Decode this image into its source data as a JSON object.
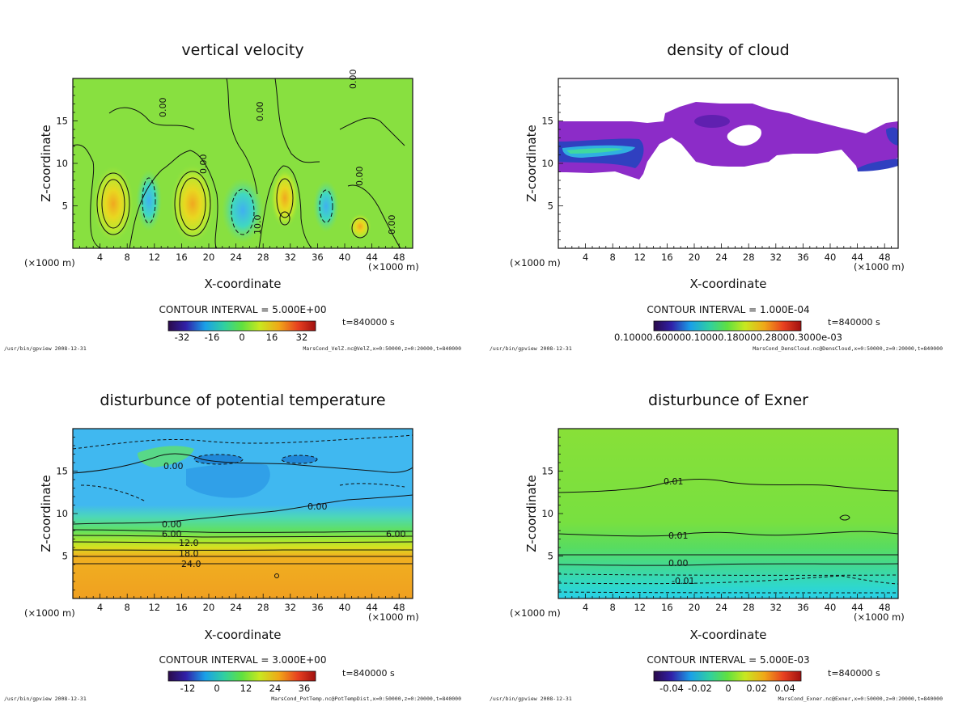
{
  "chart_data": [
    {
      "type": "heatmap",
      "title": "vertical velocity",
      "xlabel": "X-coordinate",
      "ylabel": "Z-coordinate",
      "x_unit": "(×1000 m)",
      "xticks": [
        "4",
        "8",
        "12",
        "16",
        "20",
        "24",
        "28",
        "32",
        "36",
        "40",
        "44",
        "48"
      ],
      "yticks": [
        "5",
        "10",
        "15"
      ],
      "xlim": [
        0,
        50
      ],
      "ylim": [
        0,
        20
      ],
      "contour_interval": "CONTOUR INTERVAL = 5.000E+00",
      "colorbar_ticks": [
        "-32",
        "-16",
        "0",
        "16",
        "32"
      ],
      "time": "t=840000 s",
      "contour_labels": [
        "0.00",
        "0.00",
        "0.00",
        "0.00",
        "0.00",
        "0.00",
        "10.0"
      ],
      "footer_left": "/usr/bin/gpview  2008-12-31",
      "footer_right": "MarsCond_VelZ.nc@VelZ,x=0:50000,z=0:20000,t=840000"
    },
    {
      "type": "heatmap",
      "title": "density of cloud",
      "xlabel": "X-coordinate",
      "ylabel": "Z-coordinate",
      "x_unit": "(×1000 m)",
      "xticks": [
        "4",
        "8",
        "12",
        "16",
        "20",
        "24",
        "28",
        "32",
        "36",
        "40",
        "44",
        "48"
      ],
      "yticks": [
        "5",
        "10",
        "15"
      ],
      "xlim": [
        0,
        50
      ],
      "ylim": [
        0,
        20
      ],
      "contour_interval": "CONTOUR INTERVAL = 1.000E-04",
      "colorbar_ticks": [
        "0.10000.600000.10000.180000.28000.3000e-03"
      ],
      "time": "t=840000 s",
      "contour_labels": [],
      "footer_left": "/usr/bin/gpview  2008-12-31",
      "footer_right": "MarsCond_DensCloud.nc@DensCloud,x=0:50000,z=0:20000,t=840000"
    },
    {
      "type": "heatmap",
      "title": "disturbunce of potential temperature",
      "xlabel": "X-coordinate",
      "ylabel": "Z-coordinate",
      "x_unit": "(×1000 m)",
      "xticks": [
        "4",
        "8",
        "12",
        "16",
        "20",
        "24",
        "28",
        "32",
        "36",
        "40",
        "44",
        "48"
      ],
      "yticks": [
        "5",
        "10",
        "15"
      ],
      "xlim": [
        0,
        50
      ],
      "ylim": [
        0,
        20
      ],
      "contour_interval": "CONTOUR INTERVAL = 3.000E+00",
      "colorbar_ticks": [
        "-12",
        "0",
        "12",
        "24",
        "36"
      ],
      "time": "t=840000 s",
      "contour_labels": [
        "0.00",
        "0.00",
        "6.00",
        "6.00",
        "12.0",
        "18.0",
        "24.0",
        "0.00"
      ],
      "footer_left": "/usr/bin/gpview  2008-12-31",
      "footer_right": "MarsCond_PotTemp.nc@PotTempDist,x=0:50000,z=0:20000,t=840000"
    },
    {
      "type": "heatmap",
      "title": "disturbunce of Exner",
      "xlabel": "X-coordinate",
      "ylabel": "Z-coordinate",
      "x_unit": "(×1000 m)",
      "xticks": [
        "4",
        "8",
        "12",
        "16",
        "20",
        "24",
        "28",
        "32",
        "36",
        "40",
        "44",
        "48"
      ],
      "yticks": [
        "5",
        "10",
        "15"
      ],
      "xlim": [
        0,
        50
      ],
      "ylim": [
        0,
        20
      ],
      "contour_interval": "CONTOUR INTERVAL = 5.000E-03",
      "colorbar_ticks": [
        "-0.04",
        "-0.02",
        "0",
        "0.02",
        "0.04"
      ],
      "time": "t=840000 s",
      "contour_labels": [
        "0.01",
        "0.01",
        "0.00",
        "-0.01"
      ],
      "footer_left": "/usr/bin/gpview  2008-12-31",
      "footer_right": "MarsCond_Exner.nc@Exner,x=0:50000,z=0:20000,t=840000"
    }
  ]
}
